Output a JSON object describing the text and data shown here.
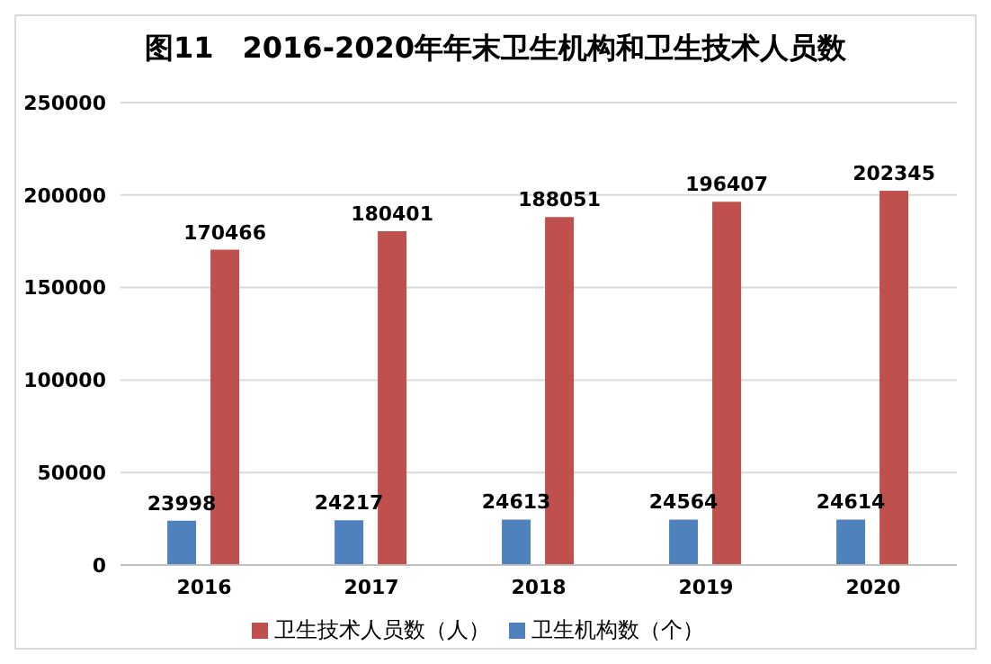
{
  "chart_data": {
    "type": "bar",
    "title": "图11　2016-2020年年末卫生机构和卫生技术人员数",
    "categories": [
      "2016",
      "2017",
      "2018",
      "2019",
      "2020"
    ],
    "series": [
      {
        "name": "卫生机构数（个）",
        "color": "#4f81bd",
        "values": [
          23998,
          24217,
          24613,
          24564,
          24614
        ]
      },
      {
        "name": "卫生技术人员数（人）",
        "color": "#c0504d",
        "values": [
          170466,
          180401,
          188051,
          196407,
          202345
        ]
      }
    ],
    "ylim": [
      0,
      250000
    ],
    "yticks": [
      0,
      50000,
      100000,
      150000,
      200000,
      250000
    ],
    "grid": "y",
    "legend": "bottom",
    "data_labels": true
  }
}
